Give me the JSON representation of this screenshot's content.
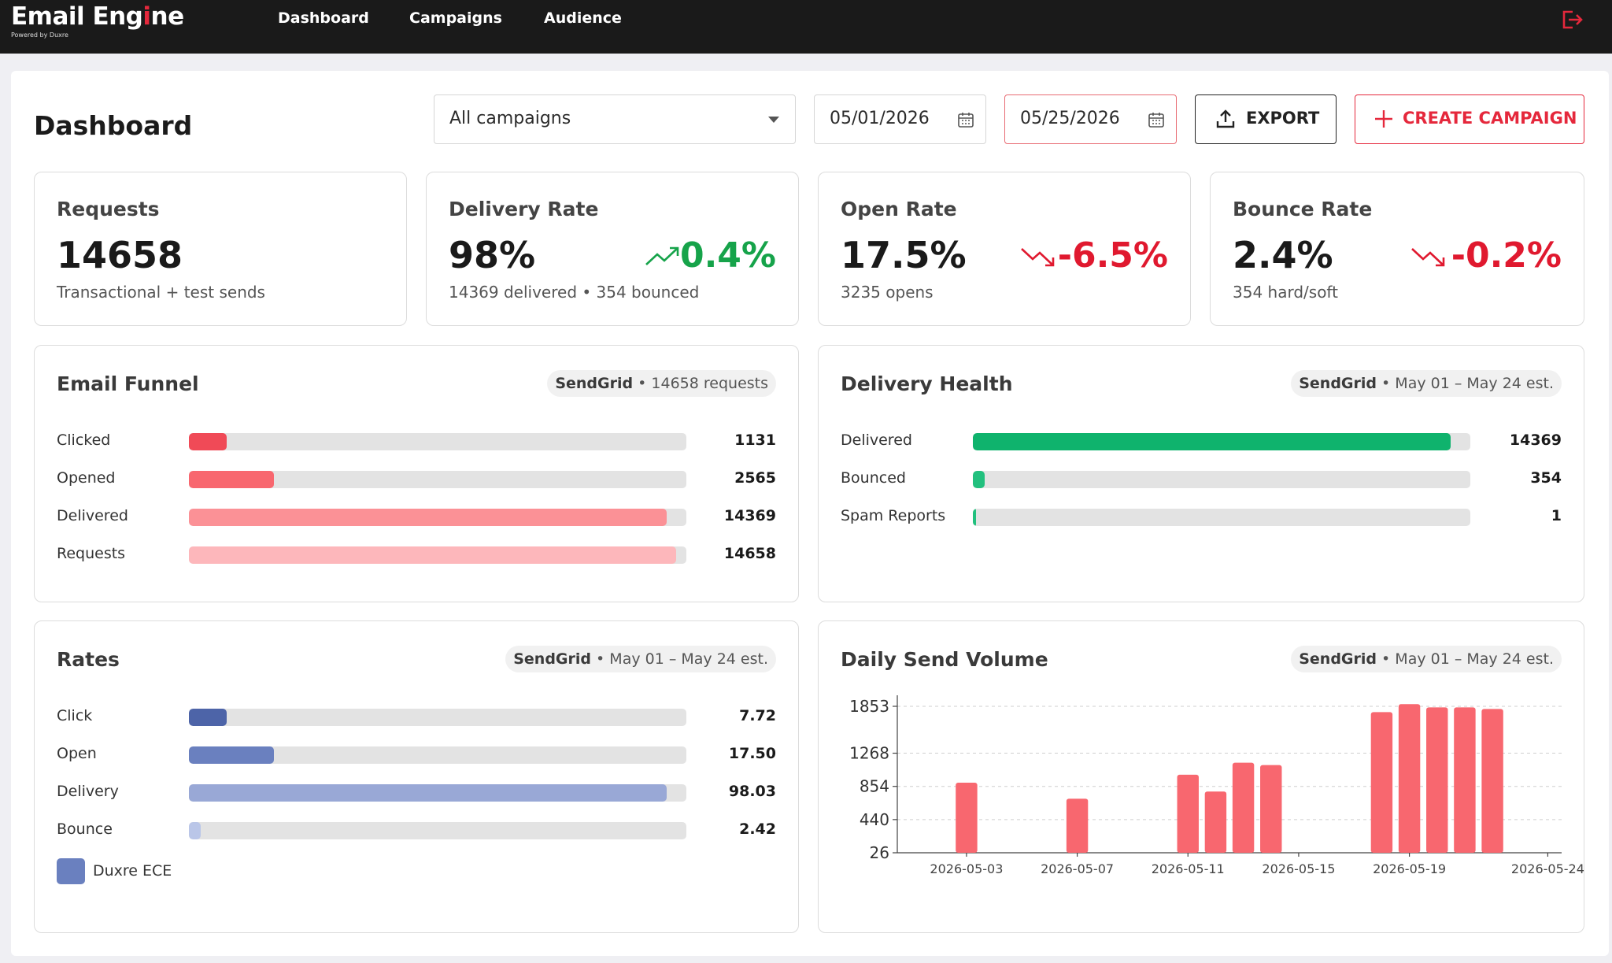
{
  "app": {
    "name_prefix": "Email Eng",
    "name_accent": "i",
    "name_suffix": "ne",
    "tagline": "Powered by Duxre"
  },
  "nav": {
    "items": [
      {
        "label": "Dashboard"
      },
      {
        "label": "Campaigns"
      },
      {
        "label": "Audience"
      }
    ],
    "logout_icon": "logout-icon"
  },
  "toolbar": {
    "page_title": "Dashboard",
    "campaign_select": "All campaigns",
    "date_from": "05/01/2026",
    "date_to": "05/25/2026",
    "export_label": "EXPORT",
    "create_label": "CREATE CAMPAIGN"
  },
  "kpis": [
    {
      "title": "Requests",
      "value": "14658",
      "sub": "Transactional + test sends",
      "delta": ""
    },
    {
      "title": "Delivery Rate",
      "value": "98%",
      "sub": "14369 delivered • 354 bounced",
      "delta": "0.4%",
      "direction": "up"
    },
    {
      "title": "Open Rate",
      "value": "17.5%",
      "sub": "3235 opens",
      "delta": "-6.5%",
      "direction": "down"
    },
    {
      "title": "Bounce Rate",
      "value": "2.4%",
      "sub": "354 hard/soft",
      "delta": "-0.2%",
      "direction": "down"
    }
  ],
  "funnel": {
    "title": "Email Funnel",
    "chip_source": "SendGrid",
    "chip_text": " • 14658 requests",
    "max": 14658,
    "rows": [
      {
        "label": "Clicked",
        "value": 1131,
        "display": "1131",
        "color": "#f04a57"
      },
      {
        "label": "Opened",
        "value": 2565,
        "display": "2565",
        "color": "#f8676f"
      },
      {
        "label": "Delivered",
        "value": 14369,
        "display": "14369",
        "color": "#fb9196"
      },
      {
        "label": "Requests",
        "value": 14658,
        "display": "14658",
        "color": "#fdb7bb"
      }
    ]
  },
  "health": {
    "title": "Delivery Health",
    "chip_source": "SendGrid",
    "chip_text": " • May 01 – May 24 est.",
    "max": 14658,
    "rows": [
      {
        "label": "Delivered",
        "value": 14369,
        "display": "14369",
        "color": "#0fb36d"
      },
      {
        "label": "Bounced",
        "value": 354,
        "display": "354",
        "color": "#22c07e"
      },
      {
        "label": "Spam Reports",
        "value": 1,
        "display": "1",
        "color": "#22c07e"
      }
    ]
  },
  "rates": {
    "title": "Rates",
    "chip_source": "SendGrid",
    "chip_text": " • May 01 – May 24 est.",
    "max": 100,
    "rows": [
      {
        "label": "Click",
        "value": 7.72,
        "display": "7.72",
        "color": "#4d64a8"
      },
      {
        "label": "Open",
        "value": 17.5,
        "display": "17.50",
        "color": "#6a80bf"
      },
      {
        "label": "Delivery",
        "value": 98.03,
        "display": "98.03",
        "color": "#99a8d6"
      },
      {
        "label": "Bounce",
        "value": 2.42,
        "display": "2.42",
        "color": "#bac6e8"
      }
    ],
    "legend_label": "Duxre ECE",
    "legend_color": "#6a80bf"
  },
  "chart_data": {
    "type": "bar",
    "title": "Daily Send Volume",
    "chip_source": "SendGrid",
    "chip_text": " • May 01 – May 24 est.",
    "categories": [
      "2026-05-01",
      "2026-05-02",
      "2026-05-03",
      "2026-05-04",
      "2026-05-05",
      "2026-05-06",
      "2026-05-07",
      "2026-05-08",
      "2026-05-09",
      "2026-05-10",
      "2026-05-11",
      "2026-05-12",
      "2026-05-13",
      "2026-05-14",
      "2026-05-15",
      "2026-05-16",
      "2026-05-17",
      "2026-05-18",
      "2026-05-19",
      "2026-05-20",
      "2026-05-21",
      "2026-05-22",
      "2026-05-23",
      "2026-05-24"
    ],
    "values": [
      0,
      0,
      900,
      0,
      0,
      0,
      700,
      0,
      0,
      0,
      1000,
      790,
      1150,
      1120,
      0,
      0,
      0,
      1780,
      1880,
      1840,
      1840,
      1820,
      0,
      0
    ],
    "x_tick_labels": [
      "2026-05-03",
      "2026-05-07",
      "2026-05-11",
      "2026-05-15",
      "2026-05-19",
      "2026-05-24"
    ],
    "y_ticks": [
      26,
      440,
      854,
      1268,
      1853
    ],
    "ylim": [
      26,
      1853
    ],
    "grid": true,
    "bar_color": "#f8676f"
  }
}
